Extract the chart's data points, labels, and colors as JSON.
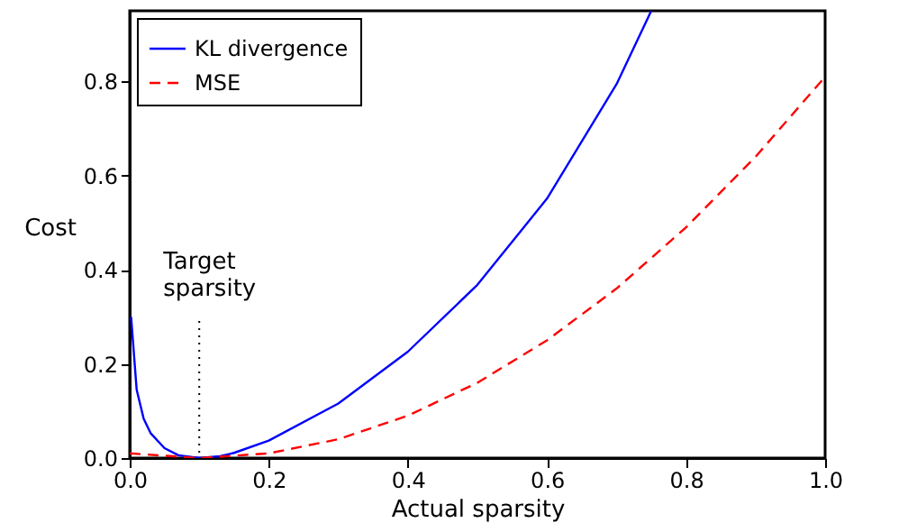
{
  "chart_data": {
    "type": "line",
    "xlabel": "Actual sparsity",
    "ylabel": "Cost",
    "xlim": [
      0,
      1
    ],
    "ylim": [
      0,
      0.95
    ],
    "xticks": [
      {
        "value": 0,
        "label": "0.0"
      },
      0.2,
      0.4,
      0.6,
      0.8,
      {
        "value": 1,
        "label": "1.0"
      }
    ],
    "yticks": [
      {
        "value": 0,
        "label": "0.0"
      },
      0.2,
      0.4,
      0.6,
      0.8
    ],
    "grid": false,
    "legend": "top left",
    "marker": "none",
    "series": [
      {
        "name": "KL divergence",
        "color": "#0000ff",
        "line_style": "solid",
        "x": [
          0.002,
          0.01,
          0.02,
          0.03,
          0.05,
          0.07,
          0.1,
          0.13,
          0.15,
          0.2,
          0.3,
          0.4,
          0.5,
          0.6,
          0.7,
          0.75
        ],
        "values": [
          0.3,
          0.145,
          0.084,
          0.053,
          0.021,
          0.006,
          0,
          0.004,
          0.011,
          0.037,
          0.116,
          0.226,
          0.368,
          0.551,
          0.794,
          0.95
        ]
      },
      {
        "name": "MSE",
        "color": "#ff0000",
        "line_style": "dashed",
        "x": [
          0,
          0.1,
          0.2,
          0.3,
          0.4,
          0.5,
          0.6,
          0.7,
          0.8,
          0.9,
          1.0
        ],
        "values": [
          0.01,
          0,
          0.01,
          0.04,
          0.09,
          0.16,
          0.25,
          0.36,
          0.49,
          0.64,
          0.81
        ]
      }
    ],
    "ref_lines": [
      {
        "axis": "x",
        "value": 0.1,
        "label": "Target sparsity",
        "color": "#000000",
        "line_style": "dotted"
      }
    ]
  }
}
